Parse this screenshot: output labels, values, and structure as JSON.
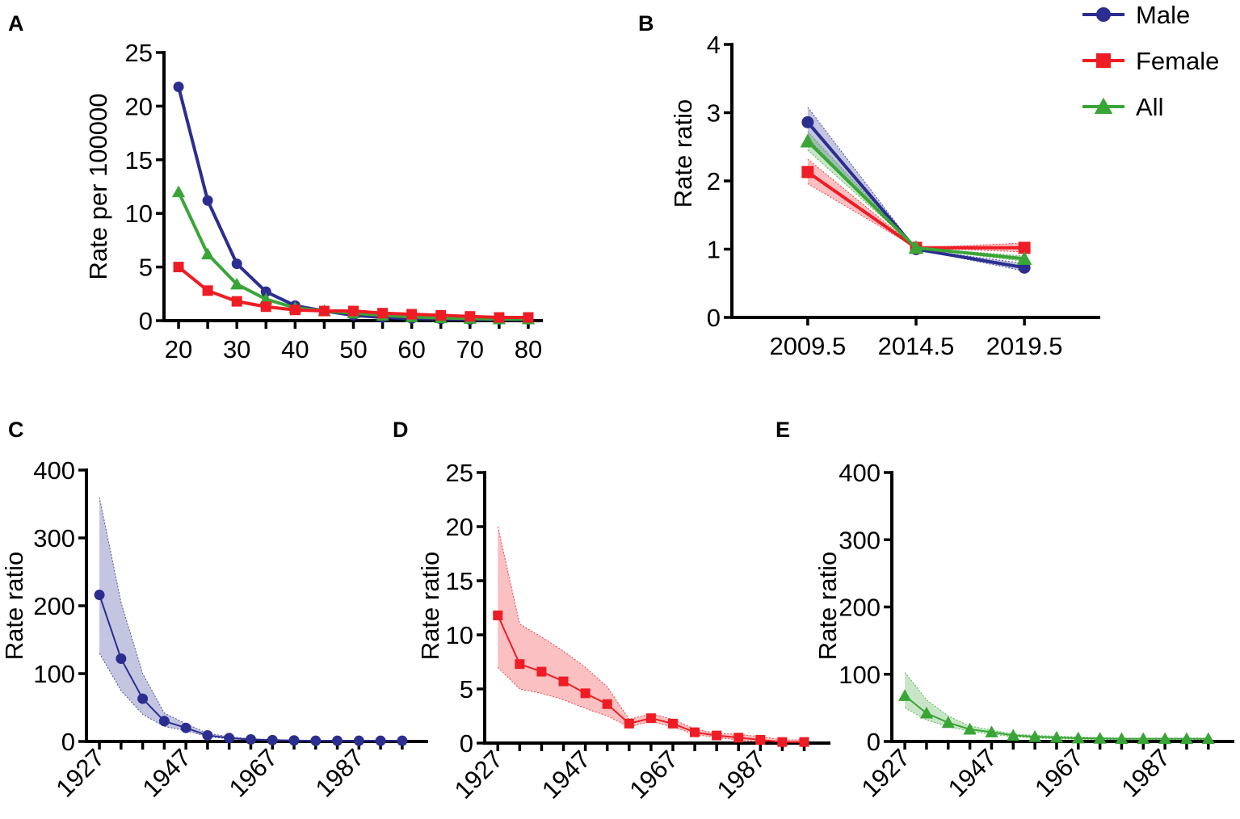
{
  "colors": {
    "male": "#2b2e8f",
    "female": "#ee1c24",
    "all": "#3aa537",
    "axis": "#000000"
  },
  "legend": {
    "placement": "top-right",
    "items": [
      {
        "label": "Male",
        "marker": "circle",
        "series": "male"
      },
      {
        "label": "Female",
        "marker": "square",
        "series": "female"
      },
      {
        "label": "All",
        "marker": "triangle",
        "series": "all"
      }
    ]
  },
  "chart_data": [
    {
      "id": "A",
      "letter": "A",
      "type": "line",
      "xlabel": "",
      "ylabel": "Rate per 100000",
      "xlim": [
        17.5,
        82.5
      ],
      "ylim": [
        0,
        25
      ],
      "yticks": [
        0,
        5,
        10,
        15,
        20,
        25
      ],
      "xticks": [
        20,
        25,
        30,
        35,
        40,
        45,
        50,
        55,
        60,
        65,
        70,
        75,
        80
      ],
      "xtick_labels": [
        {
          "at": 20,
          "label": "20"
        },
        {
          "at": 30,
          "label": "30"
        },
        {
          "at": 40,
          "label": "40"
        },
        {
          "at": 50,
          "label": "50"
        },
        {
          "at": 60,
          "label": "60"
        },
        {
          "at": 70,
          "label": "70"
        },
        {
          "at": 80,
          "label": "80"
        }
      ],
      "x": [
        20,
        25,
        30,
        35,
        40,
        45,
        50,
        55,
        60,
        65,
        70,
        75,
        80
      ],
      "series": [
        {
          "name": "Male",
          "key": "male",
          "marker": "circle",
          "values": [
            21.8,
            11.2,
            5.3,
            2.7,
            1.4,
            0.9,
            0.5,
            0.3,
            0.2,
            0.15,
            0.1,
            0.1,
            0.1
          ]
        },
        {
          "name": "All",
          "key": "all",
          "marker": "triangle",
          "values": [
            12.0,
            6.2,
            3.4,
            2.0,
            1.2,
            0.9,
            0.7,
            0.5,
            0.35,
            0.25,
            0.2,
            0.15,
            0.15
          ]
        },
        {
          "name": "Female",
          "key": "female",
          "marker": "square",
          "values": [
            5.0,
            2.8,
            1.8,
            1.3,
            1.0,
            0.9,
            0.9,
            0.7,
            0.6,
            0.5,
            0.4,
            0.3,
            0.3
          ]
        }
      ]
    },
    {
      "id": "B",
      "letter": "B",
      "type": "line",
      "xlabel": "",
      "ylabel": "Rate ratio",
      "xlim": [
        2006.0,
        2023.0
      ],
      "ylim": [
        0,
        4
      ],
      "yticks": [
        0,
        1,
        2,
        3,
        4
      ],
      "xticks": [
        2009.5,
        2014.5,
        2019.5
      ],
      "xtick_labels": [
        {
          "at": 2009.5,
          "label": "2009.5"
        },
        {
          "at": 2014.5,
          "label": "2014.5"
        },
        {
          "at": 2019.5,
          "label": "2019.5"
        }
      ],
      "x": [
        2009.5,
        2014.5,
        2019.5
      ],
      "series": [
        {
          "name": "Male",
          "key": "male",
          "marker": "circle",
          "values": [
            2.86,
            1.0,
            0.73
          ],
          "lower": [
            2.62,
            1.0,
            0.68
          ],
          "upper": [
            3.08,
            1.0,
            0.79
          ]
        },
        {
          "name": "Female",
          "key": "female",
          "marker": "square",
          "values": [
            2.13,
            1.02,
            1.02
          ],
          "lower": [
            1.96,
            1.02,
            0.96
          ],
          "upper": [
            2.32,
            1.02,
            1.09
          ]
        },
        {
          "name": "All",
          "key": "all",
          "marker": "triangle",
          "values": [
            2.58,
            1.02,
            0.86
          ],
          "lower": [
            2.45,
            1.02,
            0.82
          ],
          "upper": [
            2.72,
            1.02,
            0.9
          ]
        }
      ]
    },
    {
      "id": "C",
      "letter": "C",
      "type": "line",
      "xlabel": "",
      "ylabel": "Rate ratio",
      "xlim": [
        1924,
        2003
      ],
      "ylim": [
        0,
        400
      ],
      "yticks": [
        0,
        100,
        200,
        300,
        400
      ],
      "xticks": [
        1927,
        1932,
        1937,
        1942,
        1947,
        1952,
        1957,
        1962,
        1967,
        1972,
        1977,
        1982,
        1987,
        1992,
        1997
      ],
      "xtick_labels": [
        {
          "at": 1927,
          "label": "1927"
        },
        {
          "at": 1947,
          "label": "1947"
        },
        {
          "at": 1967,
          "label": "1967"
        },
        {
          "at": 1987,
          "label": "1987"
        }
      ],
      "x": [
        1927,
        1932,
        1937,
        1942,
        1947,
        1952,
        1957,
        1962,
        1967,
        1972,
        1977,
        1982,
        1987,
        1992,
        1997
      ],
      "series": [
        {
          "name": "Male",
          "key": "male",
          "marker": "circle",
          "values": [
            216,
            122,
            63,
            30,
            20,
            9,
            5,
            3,
            2,
            1.5,
            1,
            1,
            1,
            1,
            1
          ],
          "lower": [
            130,
            75,
            40,
            22,
            16,
            7,
            4,
            2,
            1,
            1,
            0.5,
            0.5,
            0.5,
            0.5,
            0.5
          ],
          "upper": [
            360,
            205,
            100,
            42,
            26,
            12,
            7,
            4,
            3,
            2,
            1.5,
            1.5,
            1.5,
            1.5,
            1.5
          ]
        }
      ]
    },
    {
      "id": "D",
      "letter": "D",
      "type": "line",
      "xlabel": "",
      "ylabel": "Rate ratio",
      "xlim": [
        1924,
        2003
      ],
      "ylim": [
        0,
        25
      ],
      "yticks": [
        0,
        5,
        10,
        15,
        20,
        25
      ],
      "xticks": [
        1927,
        1932,
        1937,
        1942,
        1947,
        1952,
        1957,
        1962,
        1967,
        1972,
        1977,
        1982,
        1987,
        1992,
        1997
      ],
      "xtick_labels": [
        {
          "at": 1927,
          "label": "1927"
        },
        {
          "at": 1947,
          "label": "1947"
        },
        {
          "at": 1967,
          "label": "1967"
        },
        {
          "at": 1987,
          "label": "1987"
        }
      ],
      "x": [
        1927,
        1932,
        1937,
        1942,
        1947,
        1952,
        1957,
        1962,
        1967,
        1972,
        1977,
        1982,
        1987,
        1992,
        1997
      ],
      "series": [
        {
          "name": "Female",
          "key": "female",
          "marker": "square",
          "values": [
            11.8,
            7.3,
            6.6,
            5.7,
            4.6,
            3.6,
            1.8,
            2.3,
            1.8,
            1.0,
            0.7,
            0.5,
            0.3,
            0.1,
            0.1
          ],
          "lower": [
            7.0,
            5.0,
            4.6,
            4.0,
            3.2,
            2.5,
            1.5,
            2.0,
            1.5,
            0.8,
            0.5,
            0.3,
            0.1,
            0.0,
            0.0
          ],
          "upper": [
            20.0,
            11.0,
            9.8,
            8.5,
            7.0,
            5.2,
            2.2,
            2.7,
            2.2,
            1.3,
            0.9,
            0.8,
            0.6,
            0.3,
            0.3
          ]
        }
      ]
    },
    {
      "id": "E",
      "letter": "E",
      "type": "line",
      "xlabel": "",
      "ylabel": "Rate ratio",
      "xlim": [
        1924,
        2003
      ],
      "ylim": [
        0,
        400
      ],
      "yticks": [
        0,
        100,
        200,
        300,
        400
      ],
      "xticks": [
        1927,
        1932,
        1937,
        1942,
        1947,
        1952,
        1957,
        1962,
        1967,
        1972,
        1977,
        1982,
        1987,
        1992,
        1997
      ],
      "xtick_labels": [
        {
          "at": 1927,
          "label": "1927"
        },
        {
          "at": 1947,
          "label": "1947"
        },
        {
          "at": 1967,
          "label": "1967"
        },
        {
          "at": 1987,
          "label": "1987"
        }
      ],
      "x": [
        1927,
        1932,
        1937,
        1942,
        1947,
        1952,
        1957,
        1962,
        1967,
        1972,
        1977,
        1982,
        1987,
        1992,
        1997
      ],
      "series": [
        {
          "name": "All",
          "key": "all",
          "marker": "triangle",
          "values": [
            68,
            42,
            28,
            18,
            14,
            9,
            7,
            6,
            5,
            4.5,
            4,
            4,
            4,
            4,
            4
          ],
          "lower": [
            50,
            32,
            22,
            15,
            11,
            7,
            5,
            4,
            3.5,
            3,
            3,
            3,
            3,
            3,
            3
          ],
          "upper": [
            103,
            62,
            38,
            23,
            17,
            11,
            9,
            8,
            6.5,
            6,
            5,
            5,
            5,
            5,
            5
          ]
        }
      ]
    }
  ]
}
